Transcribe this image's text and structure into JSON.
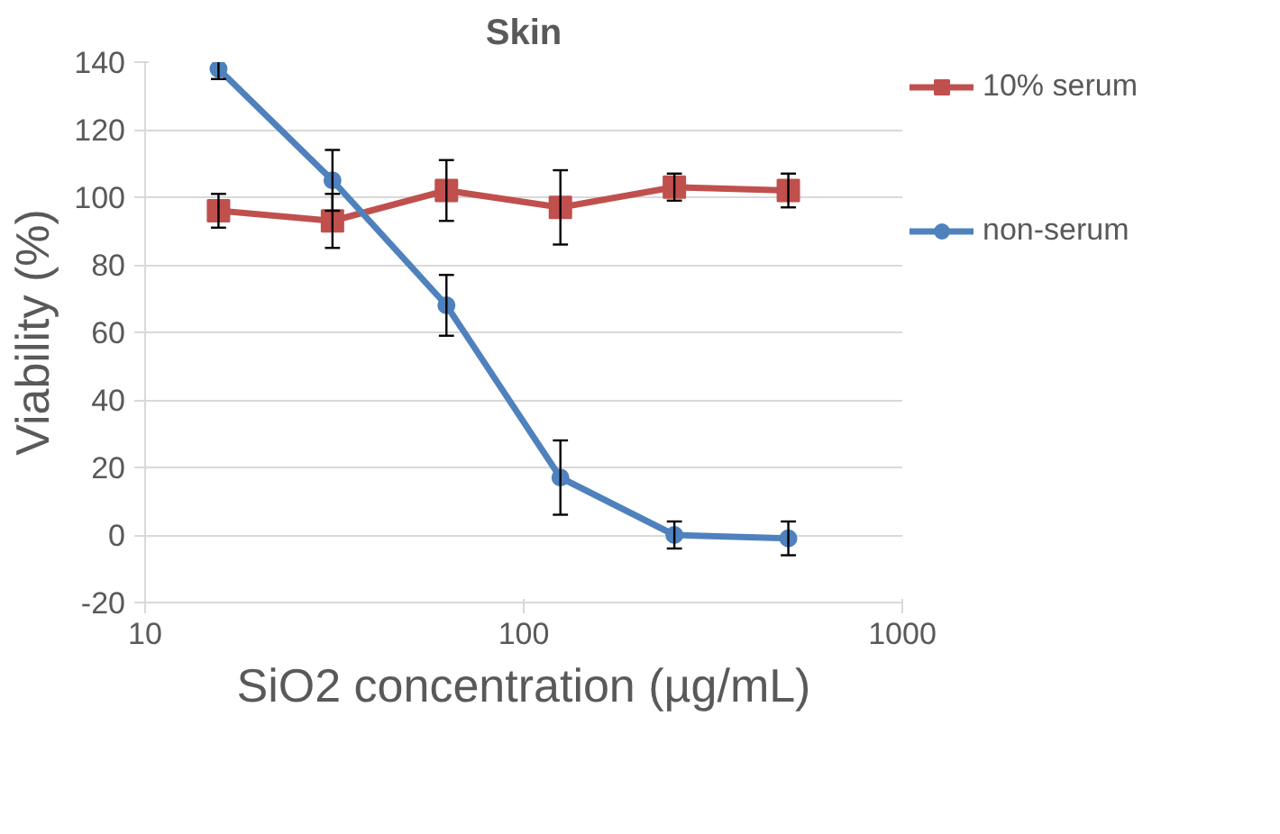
{
  "chart_data": {
    "type": "line",
    "title": "Skin",
    "xlabel": "SiO2 concentration (µg/mL)",
    "ylabel": "Viability (%)",
    "x": [
      15.625,
      31.25,
      62.5,
      125,
      250,
      500
    ],
    "series": [
      {
        "name": "10% serum",
        "color": "#c0504d",
        "marker": "square",
        "values": [
          96,
          93,
          102,
          97,
          103,
          102
        ],
        "errors": [
          5,
          8,
          9,
          11,
          4,
          5
        ]
      },
      {
        "name": "non-serum",
        "color": "#4f81bd",
        "marker": "circle",
        "values": [
          138,
          105,
          68,
          17,
          0,
          -1
        ],
        "errors": [
          3,
          9,
          9,
          11,
          4,
          5
        ]
      }
    ],
    "log": "x",
    "xlim": [
      10,
      1000
    ],
    "xticks": [
      10,
      100,
      1000
    ],
    "ylim": [
      -20,
      140
    ],
    "yticks": [
      -20,
      0,
      20,
      40,
      60,
      80,
      100,
      120,
      140
    ],
    "grid": "y",
    "legend": "right",
    "line_style": "solid"
  }
}
